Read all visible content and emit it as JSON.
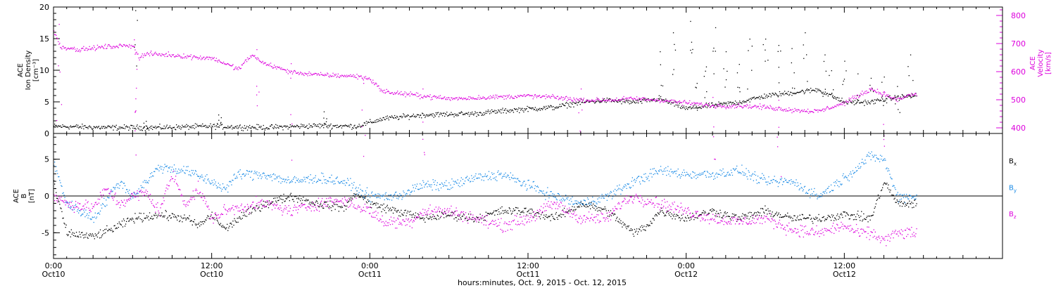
{
  "chart_data": {
    "type": "scatter",
    "xlabel": "hours:minutes, Oct.  9, 2015 - Oct. 12, 2015",
    "x_ticks": [
      {
        "hours": 0,
        "time": "0:00",
        "day": "Oct10"
      },
      {
        "hours": 12,
        "time": "12:00",
        "day": "Oct10"
      },
      {
        "hours": 24,
        "time": "0:00",
        "day": "Oct11"
      },
      {
        "hours": 36,
        "time": "12:00",
        "day": "Oct11"
      },
      {
        "hours": 48,
        "time": "0:00",
        "day": "Oct12"
      },
      {
        "hours": 60,
        "time": "12:00",
        "day": "Oct12"
      }
    ],
    "xlim": [
      0,
      72
    ],
    "panels": [
      {
        "id": "plasma",
        "ylabel_lines": [
          "ACE",
          "Ion Density",
          "[cm⁻³]"
        ],
        "ylim": [
          0,
          20
        ],
        "yticks": [
          0,
          5,
          10,
          15,
          20
        ],
        "right_axis": {
          "label_lines": [
            "ACE",
            "Velocity",
            "[km/s]"
          ],
          "ylim": [
            380,
            830
          ],
          "yticks": [
            400,
            500,
            600,
            700,
            800
          ],
          "color": "#dd00dd"
        },
        "series": [
          {
            "key": "density",
            "color": "#000000",
            "axis": "left",
            "noise": 0.35,
            "points": [
              [
                0,
                1.2
              ],
              [
                4,
                1.0
              ],
              [
                8,
                1.0
              ],
              [
                12,
                1.2
              ],
              [
                16,
                1.0
              ],
              [
                20,
                1.3
              ],
              [
                23,
                1.2
              ],
              [
                25,
                2.4
              ],
              [
                28,
                3.0
              ],
              [
                32,
                3.2
              ],
              [
                35,
                3.8
              ],
              [
                38,
                4.2
              ],
              [
                40,
                5.0
              ],
              [
                42,
                5.3
              ],
              [
                44,
                5.0
              ],
              [
                46,
                5.5
              ],
              [
                48,
                4.0
              ],
              [
                50,
                4.5
              ],
              [
                52,
                5.0
              ],
              [
                54,
                6.0
              ],
              [
                56,
                6.5
              ],
              [
                58,
                7.0
              ],
              [
                60,
                5.0
              ],
              [
                62,
                5.0
              ],
              [
                63,
                5.5
              ],
              [
                65,
                6.0
              ]
            ],
            "spikes": [
              [
                6.2,
                19.5
              ],
              [
                7.0,
                2.0
              ],
              [
                12.5,
                3.0
              ],
              [
                20.5,
                3.5
              ],
              [
                46,
                13
              ],
              [
                47,
                16
              ],
              [
                48.3,
                17.8
              ],
              [
                50.2,
                16.8
              ],
              [
                52,
                11
              ],
              [
                54,
                15
              ],
              [
                55,
                14
              ],
              [
                57,
                16
              ],
              [
                59,
                10
              ],
              [
                60,
                11.5
              ],
              [
                63,
                9
              ],
              [
                65,
                12.5
              ],
              [
                48.8,
                8
              ],
              [
                49.5,
                10.6
              ],
              [
                51,
                13
              ],
              [
                52.8,
                15
              ],
              [
                56,
                13.5
              ],
              [
                58.5,
                12.5
              ],
              [
                61,
                9.5
              ],
              [
                62,
                8.8
              ],
              [
                64,
                7.5
              ]
            ]
          },
          {
            "key": "velocity",
            "color": "#dd00dd",
            "axis": "right",
            "noise": 7,
            "points": [
              [
                0,
                745
              ],
              [
                0.5,
                690
              ],
              [
                2,
                680
              ],
              [
                4,
                690
              ],
              [
                6,
                695
              ],
              [
                6.5,
                650
              ],
              [
                7,
                665
              ],
              [
                9,
                660
              ],
              [
                11,
                652
              ],
              [
                12,
                650
              ],
              [
                13,
                630
              ],
              [
                14,
                610
              ],
              [
                15,
                660
              ],
              [
                16,
                630
              ],
              [
                18,
                600
              ],
              [
                20,
                590
              ],
              [
                23,
                585
              ],
              [
                24,
                575
              ],
              [
                25,
                530
              ],
              [
                28,
                515
              ],
              [
                30,
                505
              ],
              [
                33,
                510
              ],
              [
                36,
                515
              ],
              [
                38,
                510
              ],
              [
                40,
                500
              ],
              [
                42,
                500
              ],
              [
                44,
                505
              ],
              [
                46,
                500
              ],
              [
                48,
                490
              ],
              [
                50,
                480
              ],
              [
                52,
                480
              ],
              [
                54,
                475
              ],
              [
                56,
                465
              ],
              [
                58,
                460
              ],
              [
                60,
                490
              ],
              [
                62,
                540
              ],
              [
                63,
                520
              ],
              [
                64,
                500
              ],
              [
                65,
                520
              ]
            ],
            "spikes": [
              [
                0.4,
                770
              ],
              [
                6.1,
                715
              ],
              [
                6.3,
                610
              ],
              [
                15.4,
                680
              ],
              [
                18,
                630
              ],
              [
                23.5,
                560
              ],
              [
                28,
                540
              ],
              [
                40,
                540
              ],
              [
                50,
                510
              ],
              [
                55,
                500
              ],
              [
                63,
                530
              ]
            ]
          }
        ]
      },
      {
        "id": "imf",
        "ylabel_lines": [
          "ACE",
          "B",
          "[nT]"
        ],
        "ylim": [
          -8.5,
          8.5
        ],
        "yticks": [
          -5,
          0,
          5
        ],
        "zero_line": true,
        "series": [
          {
            "key": "bx",
            "color": "#000000",
            "noise": 0.5,
            "label_main": "B",
            "label_sub": "x",
            "label_y_value": 4.8,
            "points": [
              [
                0,
                1.5
              ],
              [
                1,
                -5
              ],
              [
                3,
                -5.5
              ],
              [
                5,
                -4
              ],
              [
                6,
                -3
              ],
              [
                8,
                -2.5
              ],
              [
                10,
                -3
              ],
              [
                11,
                -4
              ],
              [
                12,
                -2.5
              ],
              [
                13,
                -4.5
              ],
              [
                14,
                -3
              ],
              [
                16,
                -1
              ],
              [
                18,
                0
              ],
              [
                20,
                -1
              ],
              [
                22,
                -1.5
              ],
              [
                23,
                0.5
              ],
              [
                24,
                -1
              ],
              [
                26,
                -2
              ],
              [
                28,
                -3
              ],
              [
                30,
                -2.5
              ],
              [
                32,
                -3
              ],
              [
                34,
                -2
              ],
              [
                36,
                -2
              ],
              [
                38,
                -3
              ],
              [
                40,
                -1
              ],
              [
                42,
                -2
              ],
              [
                44,
                -5
              ],
              [
                45,
                -4
              ],
              [
                46,
                -2
              ],
              [
                48,
                -3
              ],
              [
                50,
                -2
              ],
              [
                52,
                -3
              ],
              [
                54,
                -2
              ],
              [
                56,
                -3
              ],
              [
                58,
                -3
              ],
              [
                60,
                -2.5
              ],
              [
                62,
                -3
              ],
              [
                63,
                2
              ],
              [
                64,
                -1
              ]
            ]
          },
          {
            "key": "by",
            "color": "#1b8be6",
            "noise": 0.6,
            "label_main": "B",
            "label_sub": "y",
            "label_y_value": 1.2,
            "points": [
              [
                0,
                4.5
              ],
              [
                1,
                -1
              ],
              [
                3,
                -3
              ],
              [
                5,
                2
              ],
              [
                6,
                0
              ],
              [
                7,
                2
              ],
              [
                8,
                4
              ],
              [
                10,
                3.5
              ],
              [
                12,
                2
              ],
              [
                13,
                1
              ],
              [
                14,
                3
              ],
              [
                16,
                3
              ],
              [
                18,
                2
              ],
              [
                20,
                2.5
              ],
              [
                22,
                2
              ],
              [
                24,
                0
              ],
              [
                26,
                0
              ],
              [
                28,
                1.5
              ],
              [
                30,
                1.5
              ],
              [
                32,
                2.5
              ],
              [
                34,
                3
              ],
              [
                36,
                1.5
              ],
              [
                38,
                0
              ],
              [
                40,
                -1
              ],
              [
                42,
                0
              ],
              [
                44,
                2
              ],
              [
                46,
                3.5
              ],
              [
                48,
                3
              ],
              [
                50,
                3
              ],
              [
                52,
                3.5
              ],
              [
                54,
                2
              ],
              [
                56,
                2
              ],
              [
                58,
                0
              ],
              [
                60,
                2.5
              ],
              [
                61,
                4
              ],
              [
                62,
                5.5
              ],
              [
                63,
                5
              ],
              [
                64,
                0
              ]
            ]
          },
          {
            "key": "bz",
            "color": "#dd00dd",
            "noise": 0.7,
            "label_main": "B",
            "label_sub": "z",
            "label_y_value": -2.4,
            "points": [
              [
                0,
                0
              ],
              [
                1,
                -1
              ],
              [
                3,
                -1.5
              ],
              [
                4,
                1
              ],
              [
                5,
                -1
              ],
              [
                6,
                0
              ],
              [
                7,
                0.5
              ],
              [
                8,
                -2
              ],
              [
                9,
                3
              ],
              [
                10,
                -1
              ],
              [
                11,
                1
              ],
              [
                12,
                -3
              ],
              [
                13,
                -2
              ],
              [
                14,
                -1.5
              ],
              [
                16,
                -1
              ],
              [
                18,
                -2
              ],
              [
                20,
                -1
              ],
              [
                22,
                -0.5
              ],
              [
                24,
                -2
              ],
              [
                25,
                -3.5
              ],
              [
                27,
                -3.5
              ],
              [
                28,
                -2
              ],
              [
                30,
                -2
              ],
              [
                32,
                -3
              ],
              [
                34,
                -4
              ],
              [
                36,
                -3
              ],
              [
                38,
                -1
              ],
              [
                40,
                -3
              ],
              [
                42,
                -3
              ],
              [
                43,
                -1
              ],
              [
                44,
                0
              ],
              [
                46,
                -1
              ],
              [
                48,
                -2
              ],
              [
                50,
                -3
              ],
              [
                52,
                -3.5
              ],
              [
                54,
                -3
              ],
              [
                56,
                -4.5
              ],
              [
                58,
                -5
              ],
              [
                60,
                -4
              ],
              [
                61,
                -5
              ],
              [
                62,
                -5
              ],
              [
                63,
                -6
              ],
              [
                64,
                -5
              ]
            ]
          }
        ]
      }
    ],
    "x_max_data_hours": 65.5
  }
}
